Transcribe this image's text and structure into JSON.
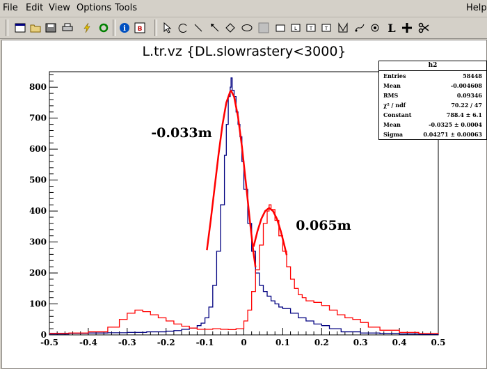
{
  "menubar": {
    "file": "File",
    "edit": "Edit",
    "view": "View",
    "options": "Options",
    "tools": "Tools",
    "help": "Help"
  },
  "toolbar": {
    "icons": [
      "new-canvas-icon",
      "open-folder-icon",
      "save-icon",
      "print-icon",
      "lightning-icon",
      "refresh-icon",
      "info-icon",
      "browser-icon",
      "pointer-icon",
      "arc-icon",
      "line-icon",
      "arrow-icon",
      "diamond-icon",
      "ellipse-icon",
      "pad-icon",
      "pave-icon",
      "pavelabel-icon",
      "pavetext-icon",
      "pavestext-icon",
      "polyline-icon",
      "curvy-line-icon",
      "cut-icon",
      "latex-icon",
      "marker-icon",
      "scissors-icon"
    ],
    "latex_label": "L"
  },
  "stats": {
    "title": "h2",
    "rows": [
      {
        "k": "Entries",
        "v": "58448"
      },
      {
        "k": "Mean",
        "v": "-0.004608"
      },
      {
        "k": "RMS",
        "v": "0.09346"
      },
      {
        "k": "χ² / ndf",
        "v": "70.22 / 47"
      },
      {
        "k": "Constant",
        "v": "788.4 ± 6.1"
      },
      {
        "k": "Mean",
        "v": "-0.0325 ± 0.0004"
      },
      {
        "k": "Sigma",
        "v": "0.04271 ± 0.00063"
      }
    ]
  },
  "chart_data": {
    "type": "line",
    "title": "L.tr.vz {DL.slowrastery<3000}",
    "xlim": [
      -0.5,
      0.5
    ],
    "ylim": [
      0,
      850
    ],
    "xticks": [
      "-0.5",
      "-0.4",
      "-0.3",
      "-0.2",
      "-0.1",
      "0",
      "0.1",
      "0.2",
      "0.3",
      "0.4",
      "0.5"
    ],
    "yticks": [
      "0",
      "100",
      "200",
      "300",
      "400",
      "500",
      "600",
      "700",
      "800"
    ],
    "annotations": [
      "-0.033m",
      "0.065m"
    ],
    "series": [
      {
        "color": "#000080",
        "x": [
          -0.5,
          -0.45,
          -0.4,
          -0.35,
          -0.3,
          -0.25,
          -0.2,
          -0.18,
          -0.16,
          -0.14,
          -0.12,
          -0.11,
          -0.1,
          -0.09,
          -0.08,
          -0.07,
          -0.06,
          -0.05,
          -0.045,
          -0.04,
          -0.035,
          -0.033,
          -0.03,
          -0.025,
          -0.02,
          -0.015,
          -0.01,
          -0.005,
          0,
          0.01,
          0.02,
          0.03,
          0.04,
          0.05,
          0.06,
          0.07,
          0.08,
          0.09,
          0.1,
          0.12,
          0.14,
          0.16,
          0.18,
          0.2,
          0.22,
          0.25,
          0.3,
          0.35,
          0.4,
          0.45,
          0.5
        ],
        "values": [
          3,
          5,
          6,
          7,
          8,
          10,
          12,
          14,
          18,
          22,
          30,
          38,
          55,
          90,
          160,
          270,
          420,
          580,
          680,
          770,
          800,
          830,
          790,
          770,
          720,
          680,
          640,
          560,
          470,
          360,
          270,
          200,
          160,
          140,
          125,
          110,
          100,
          90,
          85,
          70,
          55,
          45,
          35,
          30,
          20,
          10,
          6,
          4,
          3,
          2,
          1
        ]
      },
      {
        "color": "#ff0000",
        "x": [
          -0.5,
          -0.45,
          -0.4,
          -0.35,
          -0.32,
          -0.3,
          -0.28,
          -0.26,
          -0.24,
          -0.22,
          -0.2,
          -0.18,
          -0.16,
          -0.14,
          -0.12,
          -0.1,
          -0.08,
          -0.06,
          -0.04,
          -0.02,
          0,
          0.01,
          0.02,
          0.03,
          0.04,
          0.05,
          0.06,
          0.065,
          0.07,
          0.08,
          0.09,
          0.1,
          0.11,
          0.12,
          0.13,
          0.14,
          0.15,
          0.16,
          0.18,
          0.2,
          0.22,
          0.24,
          0.26,
          0.28,
          0.3,
          0.32,
          0.35,
          0.4,
          0.45,
          0.5
        ],
        "values": [
          5,
          6,
          10,
          25,
          50,
          70,
          80,
          75,
          65,
          55,
          45,
          35,
          28,
          22,
          18,
          18,
          20,
          18,
          17,
          20,
          45,
          80,
          140,
          210,
          290,
          360,
          400,
          420,
          405,
          370,
          320,
          270,
          220,
          180,
          150,
          130,
          120,
          110,
          105,
          95,
          80,
          65,
          55,
          50,
          40,
          25,
          15,
          8,
          4,
          2
        ]
      },
      {
        "color": "#ff0000",
        "fit": "gaus",
        "x": [
          -0.095,
          -0.085,
          -0.075,
          -0.065,
          -0.055,
          -0.045,
          -0.035,
          -0.0325,
          -0.025,
          -0.015,
          -0.005,
          0.005,
          0.015,
          0.025,
          0.03
        ],
        "values": [
          274,
          372,
          478,
          584,
          679,
          750,
          786,
          788,
          769,
          705,
          609,
          494,
          374,
          263,
          218
        ]
      },
      {
        "color": "#ff0000",
        "fit": "gaus",
        "x": [
          0.025,
          0.035,
          0.045,
          0.055,
          0.065,
          0.075,
          0.085,
          0.095,
          0.105,
          0.11
        ],
        "values": [
          285,
          335,
          375,
          400,
          410,
          400,
          375,
          335,
          285,
          258
        ]
      }
    ]
  }
}
